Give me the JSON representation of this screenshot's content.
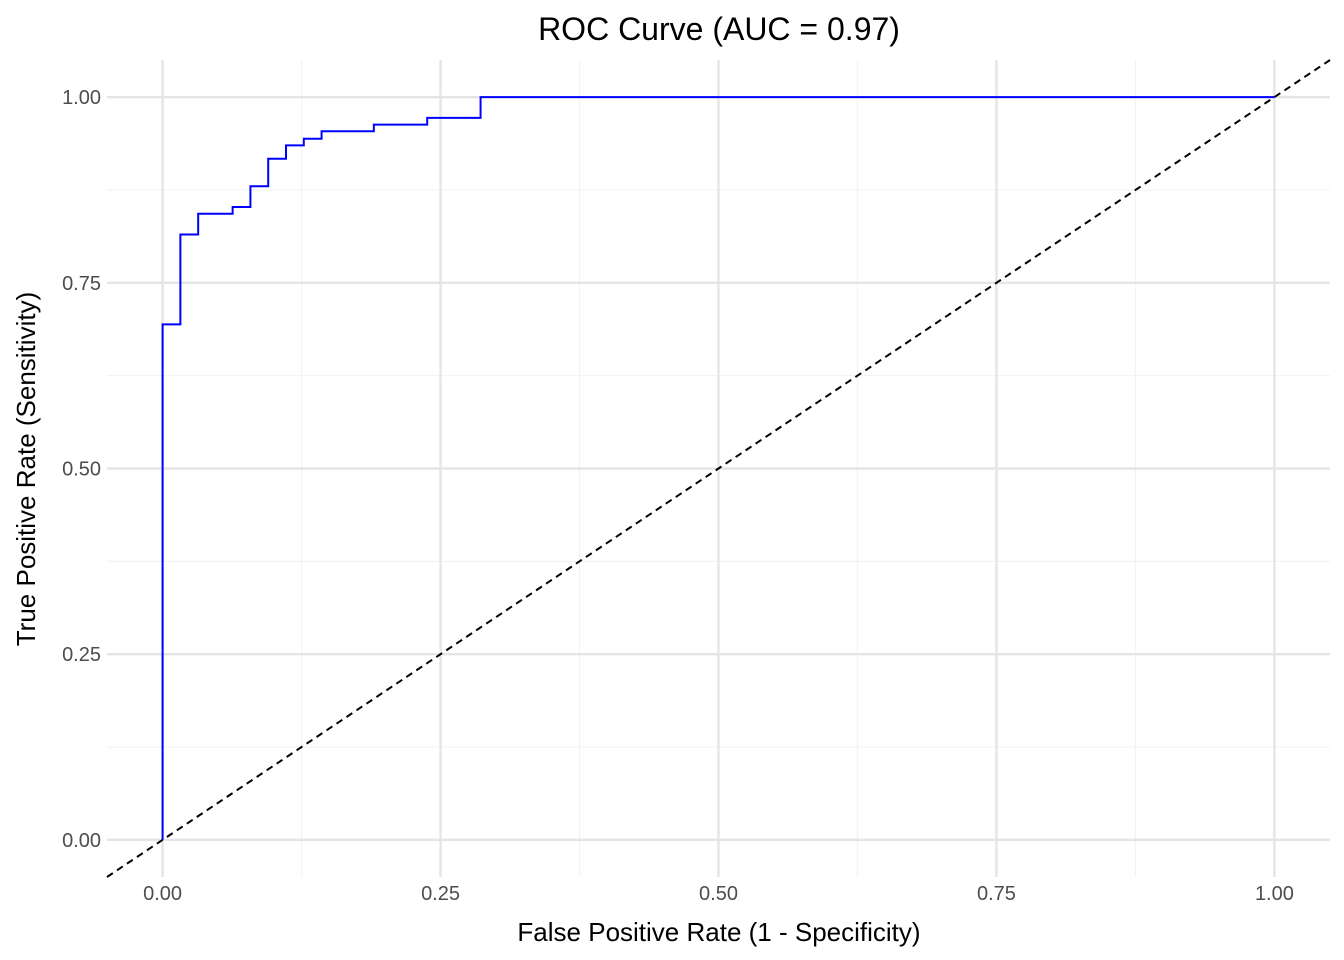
{
  "chart_data": {
    "type": "line",
    "title": "ROC Curve (AUC = 0.97)",
    "xlabel": "False Positive Rate (1 - Specificity)",
    "ylabel": "True Positive Rate (Sensitivity)",
    "xlim": [
      -0.05,
      1.05
    ],
    "ylim": [
      -0.05,
      1.05
    ],
    "x_ticks": [
      {
        "value": 0.0,
        "label": "0.00"
      },
      {
        "value": 0.25,
        "label": "0.25"
      },
      {
        "value": 0.5,
        "label": "0.50"
      },
      {
        "value": 0.75,
        "label": "0.75"
      },
      {
        "value": 1.0,
        "label": "1.00"
      }
    ],
    "y_ticks": [
      {
        "value": 0.0,
        "label": "0.00"
      },
      {
        "value": 0.25,
        "label": "0.25"
      },
      {
        "value": 0.5,
        "label": "0.50"
      },
      {
        "value": 0.75,
        "label": "0.75"
      },
      {
        "value": 1.0,
        "label": "1.00"
      }
    ],
    "minor_ticks": [
      0.125,
      0.375,
      0.625,
      0.875
    ],
    "grid": true,
    "legend": "none",
    "series": [
      {
        "style": "step",
        "color": "#0000ff",
        "x": [
          0.0,
          0.0,
          0.016,
          0.016,
          0.032,
          0.032,
          0.063,
          0.063,
          0.079,
          0.079,
          0.095,
          0.095,
          0.111,
          0.111,
          0.127,
          0.127,
          0.143,
          0.143,
          0.19,
          0.19,
          0.238,
          0.238,
          0.286,
          0.286,
          1.0
        ],
        "y": [
          0.0,
          0.694,
          0.694,
          0.815,
          0.815,
          0.843,
          0.843,
          0.852,
          0.852,
          0.88,
          0.88,
          0.917,
          0.917,
          0.935,
          0.935,
          0.944,
          0.944,
          0.954,
          0.954,
          0.963,
          0.963,
          0.972,
          0.972,
          1.0,
          1.0
        ]
      },
      {
        "style": "dashed",
        "color": "#000000",
        "x": [
          -0.05,
          1.05
        ],
        "y": [
          -0.05,
          1.05
        ]
      }
    ]
  }
}
